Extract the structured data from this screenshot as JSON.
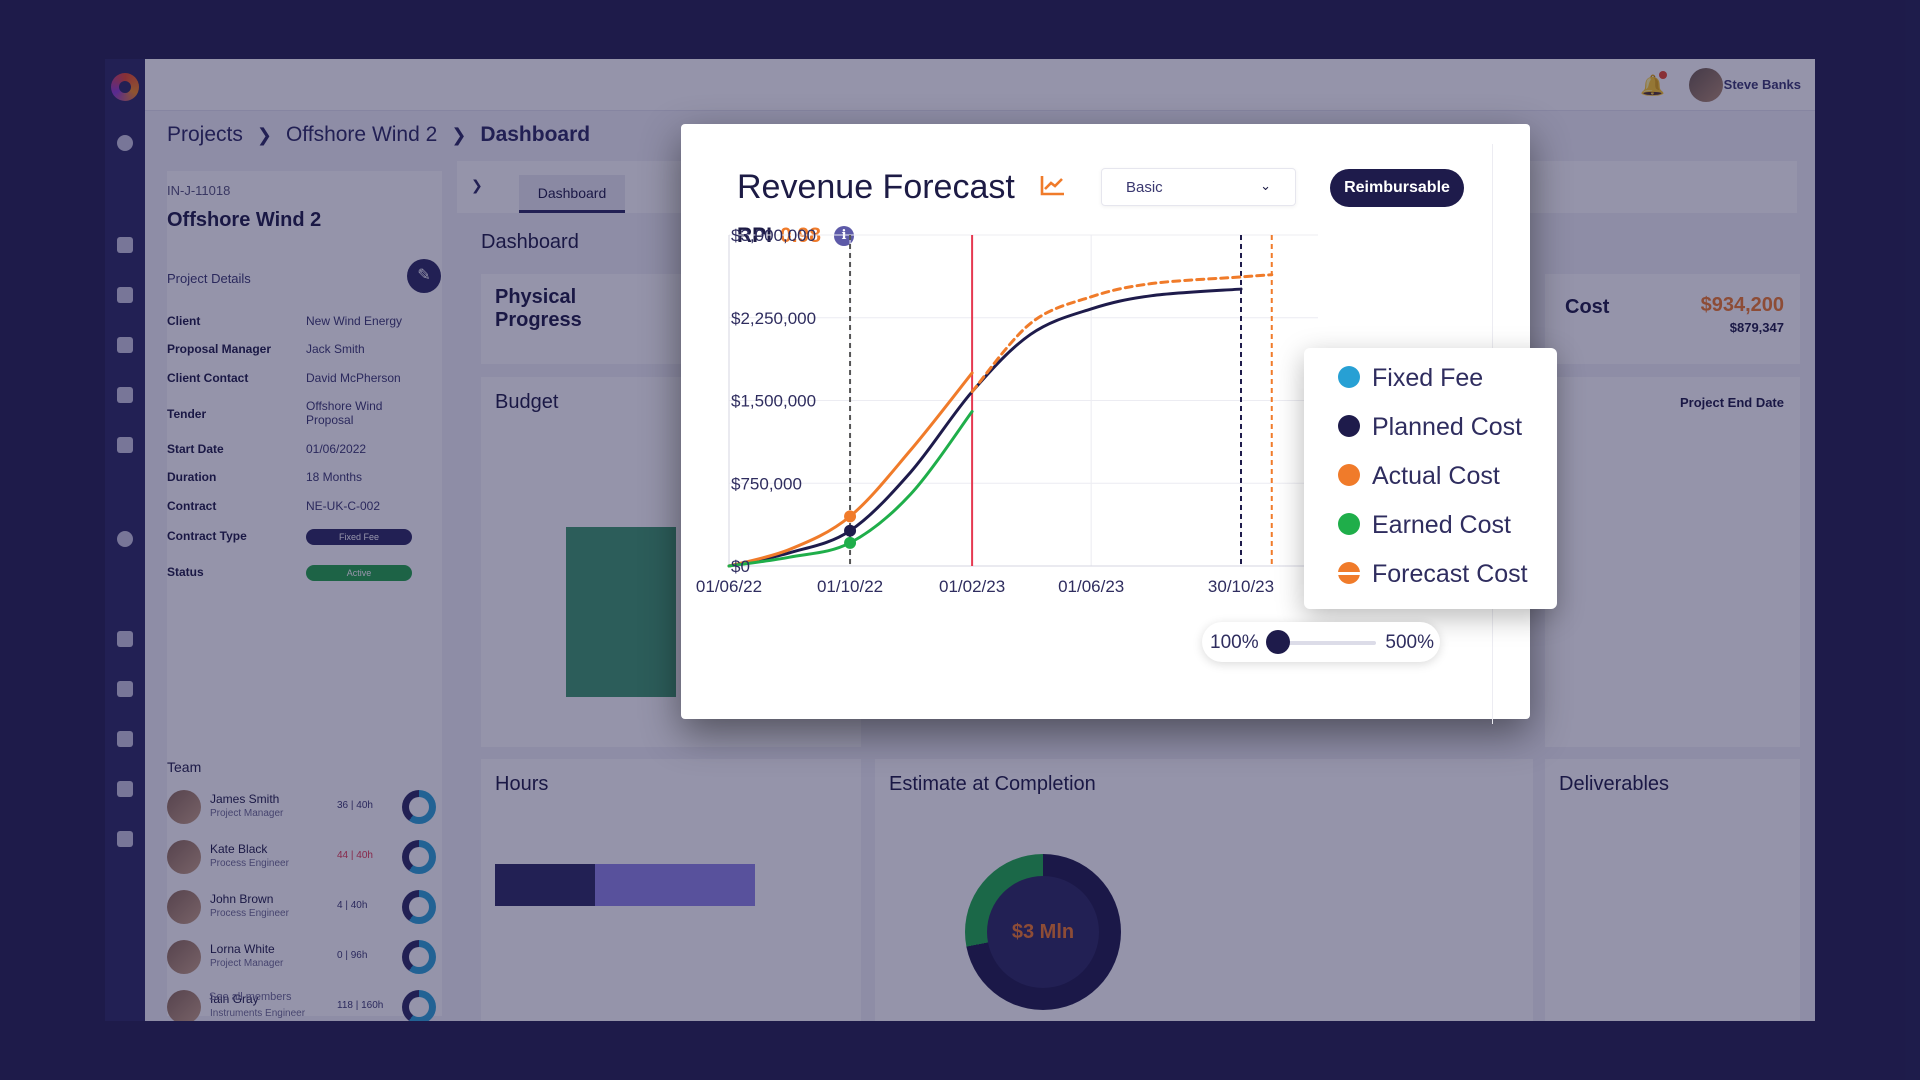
{
  "app": {
    "user_name": "Steve Banks",
    "breadcrumb": [
      "Projects",
      "Offshore Wind 2",
      "Dashboard"
    ],
    "project_id": "IN-J-11018",
    "project_title": "Offshore Wind 2",
    "project_details_label": "Project Details",
    "details": [
      {
        "key": "Client",
        "value": "New Wind Energy"
      },
      {
        "key": "Proposal Manager",
        "value": "Jack Smith"
      },
      {
        "key": "Client Contact",
        "value": "David McPherson"
      },
      {
        "key": "Tender",
        "value": "Offshore Wind Proposal"
      },
      {
        "key": "Start Date",
        "value": "01/06/2022"
      },
      {
        "key": "Duration",
        "value": "18 Months"
      },
      {
        "key": "Contract",
        "value": "NE-UK-C-002"
      },
      {
        "key": "Contract Type",
        "value": "Fixed Fee"
      },
      {
        "key": "Status",
        "value": "Active"
      }
    ],
    "team_label": "Team",
    "team": [
      {
        "name": "James Smith",
        "role": "Project Manager",
        "hours": "36 | 40h"
      },
      {
        "name": "Kate Black",
        "role": "Process Engineer",
        "hours": "44 | 40h"
      },
      {
        "name": "John Brown",
        "role": "Process Engineer",
        "hours": "4 | 40h"
      },
      {
        "name": "Lorna White",
        "role": "Project Manager",
        "hours": "0 | 96h"
      },
      {
        "name": "Iain Gray",
        "role": "Instruments Engineer",
        "hours": "118 | 160h"
      }
    ],
    "see_all": "See all members",
    "tab_active": "Dashboard",
    "dashboard_heading": "Dashboard",
    "cards": {
      "physical_progress": "Physical Progress",
      "cost": "Cost",
      "cost_value": "$934,200",
      "cost_sub": "$879,347",
      "budget": "Budget",
      "project_end_date": "Project End Date",
      "hours": "Hours",
      "estimate_at_completion": "Estimate at Completion",
      "eac_center": "$3 Mln",
      "deliverables": "Deliverables"
    }
  },
  "modal": {
    "title": "Revenue Forecast",
    "select_value": "Basic",
    "badge": "Reimbursable",
    "rpi_label": "RPI",
    "rpi_value": "0.98",
    "info_icon": "i",
    "legend": [
      {
        "label": "Fixed Fee",
        "color": "#27a0d4"
      },
      {
        "label": "Planned Cost",
        "color": "#1e1b4b"
      },
      {
        "label": "Actual Cost",
        "color": "#f07b2a"
      },
      {
        "label": "Earned Cost",
        "color": "#1fae4a"
      },
      {
        "label": "Forecast Cost",
        "color": "#f07b2a"
      }
    ],
    "zoom": {
      "min_label": "100%",
      "max_label": "500%",
      "value": 0
    }
  },
  "chart_data": {
    "type": "line",
    "title": "Revenue Forecast",
    "x_ticks": [
      "01/06/22",
      "01/10/22",
      "01/02/23",
      "01/06/23",
      "30/10/23"
    ],
    "y_ticks": [
      "$0",
      "$750,000",
      "$1,500,000",
      "$2,250,000",
      "$3,000,000"
    ],
    "ylim": [
      0,
      3000000
    ],
    "grid": true,
    "series": [
      {
        "name": "Planned Cost",
        "style": "solid",
        "color": "#1e1b4b",
        "x": [
          "2022-06-01",
          "2022-08-01",
          "2022-10-01",
          "2022-12-01",
          "2023-02-01",
          "2023-04-01",
          "2023-06-01",
          "2023-08-01",
          "2023-10-30"
        ],
        "y": [
          0,
          120000,
          320000,
          850000,
          1580000,
          2100000,
          2330000,
          2450000,
          2510000
        ]
      },
      {
        "name": "Actual Cost",
        "style": "solid",
        "color": "#f07b2a",
        "x": [
          "2022-06-01",
          "2022-08-01",
          "2022-10-01",
          "2022-12-01",
          "2023-02-01"
        ],
        "y": [
          0,
          150000,
          450000,
          1050000,
          1750000
        ]
      },
      {
        "name": "Earned Cost",
        "style": "solid",
        "color": "#1fae4a",
        "x": [
          "2022-06-01",
          "2022-08-01",
          "2022-10-01",
          "2022-12-01",
          "2023-02-01"
        ],
        "y": [
          0,
          80000,
          210000,
          650000,
          1400000
        ]
      },
      {
        "name": "Forecast Cost",
        "style": "dashed",
        "color": "#f07b2a",
        "x": [
          "2023-02-01",
          "2023-04-01",
          "2023-06-01",
          "2023-08-01",
          "2023-10-30",
          "2023-11-30"
        ],
        "y": [
          1580000,
          2200000,
          2440000,
          2560000,
          2620000,
          2640000
        ]
      }
    ],
    "markers": [
      {
        "x": "2022-10-01",
        "y": 450000,
        "color": "#f07b2a"
      },
      {
        "x": "2022-10-01",
        "y": 320000,
        "color": "#1e1b4b"
      },
      {
        "x": "2022-10-01",
        "y": 210000,
        "color": "#1fae4a"
      }
    ],
    "reference_lines": [
      {
        "x": "2022-10-01",
        "style": "dashed",
        "color": "#555"
      },
      {
        "x": "2023-02-01",
        "style": "solid",
        "color": "#e63950"
      },
      {
        "x": "2023-10-30",
        "style": "dashed",
        "color": "#1e1b4b"
      },
      {
        "x": "2023-11-30",
        "style": "dashed",
        "color": "#f07b2a"
      }
    ]
  }
}
